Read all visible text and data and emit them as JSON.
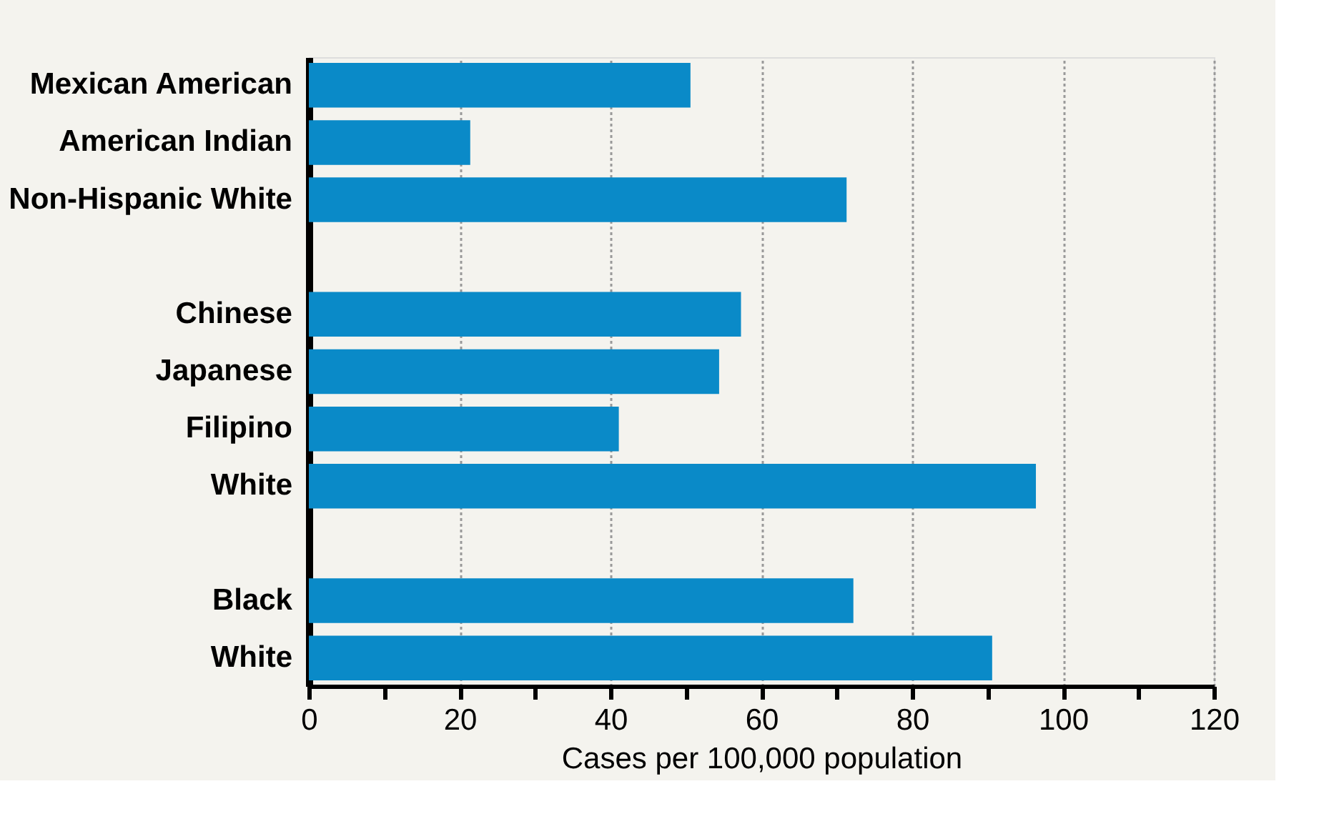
{
  "chart_data": {
    "type": "bar",
    "orientation": "horizontal",
    "categories": [
      "Mexican American",
      "American Indian",
      "Non-Hispanic White",
      null,
      "Chinese",
      "Japanese",
      "Filipino",
      "White",
      null,
      "Black",
      "White"
    ],
    "values": [
      50.6,
      21.4,
      71.3,
      null,
      57.3,
      54.4,
      41.1,
      96.4,
      null,
      72.2,
      90.6
    ],
    "color": "#0a8ac8",
    "xlabel": "Cases per 100,000 population",
    "xlim": [
      0,
      120
    ],
    "xticks": [
      0,
      {
        "value": 10,
        "label": null
      },
      20,
      {
        "value": 30,
        "label": null
      },
      40,
      {
        "value": 50,
        "label": null
      },
      60,
      {
        "value": 70,
        "label": null
      },
      80,
      {
        "value": 90,
        "label": null
      },
      100,
      {
        "value": 110,
        "label": null
      },
      120
    ],
    "grid": "x"
  }
}
